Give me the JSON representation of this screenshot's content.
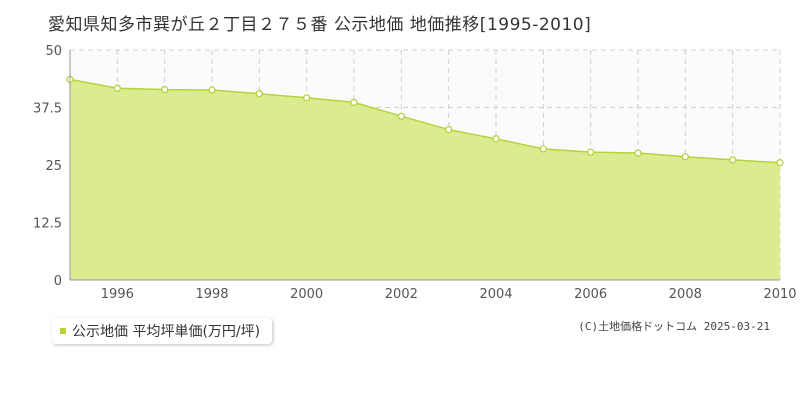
{
  "title": "愛知県知多市巽が丘２丁目２７５番 公示地価 地価推移[1995-2010]",
  "legend": {
    "label": "公示地価 平均坪単価(万円/坪)"
  },
  "credit": "(C)土地価格ドットコム 2025-03-21",
  "colors": {
    "fill": "#dbeb8f",
    "line": "#b5d33d",
    "marker": "#b5d33d",
    "plot_bg": "#fbfafc",
    "grid": "#d0d0d0"
  },
  "chart_data": {
    "type": "area",
    "x": [
      1995,
      1996,
      1997,
      1998,
      1999,
      2000,
      2001,
      2002,
      2003,
      2004,
      2005,
      2006,
      2007,
      2008,
      2009,
      2010
    ],
    "series": [
      {
        "values": [
          43.6,
          41.7,
          41.4,
          41.3,
          40.5,
          39.6,
          38.6,
          35.6,
          32.7,
          30.7,
          28.5,
          27.8,
          27.6,
          26.8,
          26.1,
          25.5
        ]
      }
    ],
    "xlim": [
      1995,
      2010
    ],
    "ylim": [
      0,
      50
    ],
    "x_ticks": [
      "1996",
      "1998",
      "2000",
      "2002",
      "2004",
      "2006",
      "2008",
      "2010"
    ],
    "y_ticks": [
      "0",
      "12.5",
      "25",
      "37.5",
      "50"
    ],
    "grid": true
  }
}
